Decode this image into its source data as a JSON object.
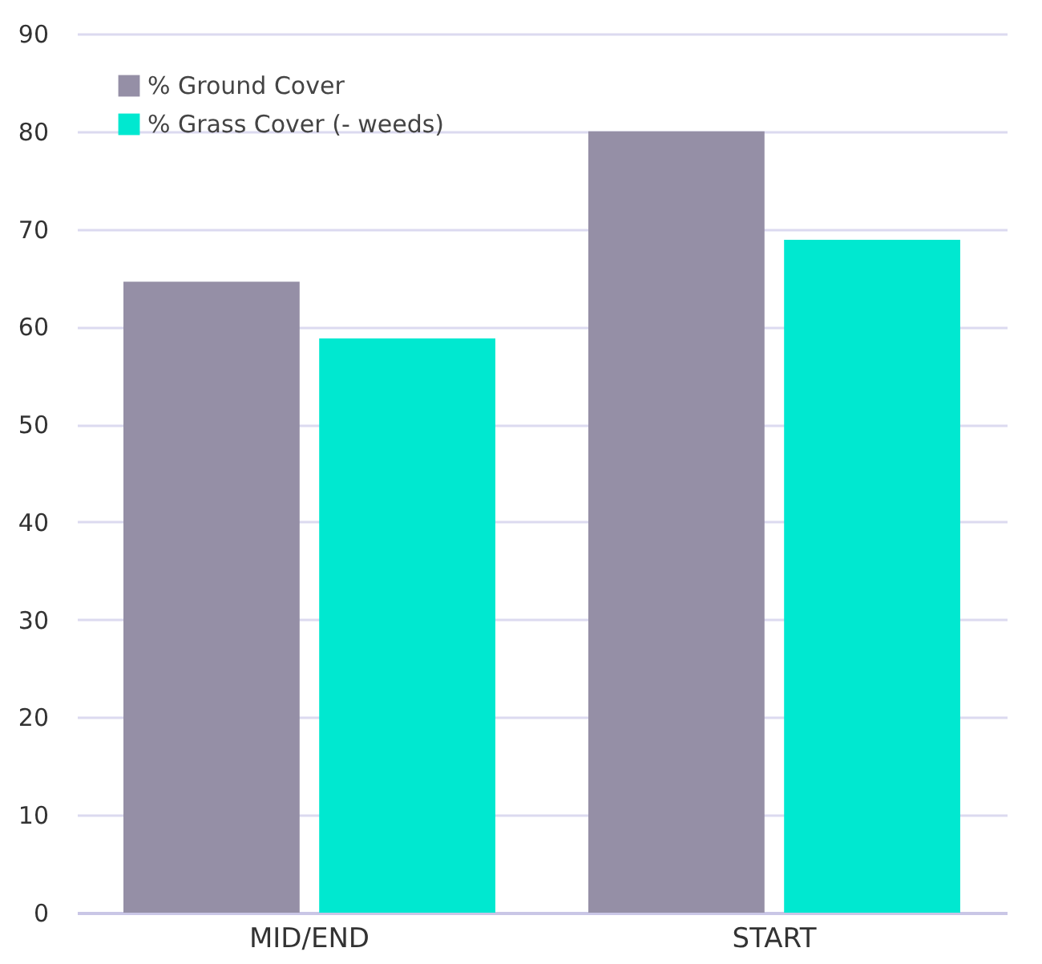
{
  "chart_data": {
    "type": "bar",
    "categories": [
      "MID/END",
      "START"
    ],
    "series": [
      {
        "name": "% Ground Cover",
        "color": "#958fa6",
        "values": [
          64.6,
          80
        ]
      },
      {
        "name": "% Grass Cover (- weeds)",
        "color": "#00e8d0",
        "values": [
          58.8,
          68.9
        ]
      }
    ],
    "ylim": [
      0,
      90
    ],
    "yticks": [
      0,
      10,
      20,
      30,
      40,
      50,
      60,
      70,
      80,
      90
    ],
    "grid": "y",
    "legend": "top left"
  }
}
